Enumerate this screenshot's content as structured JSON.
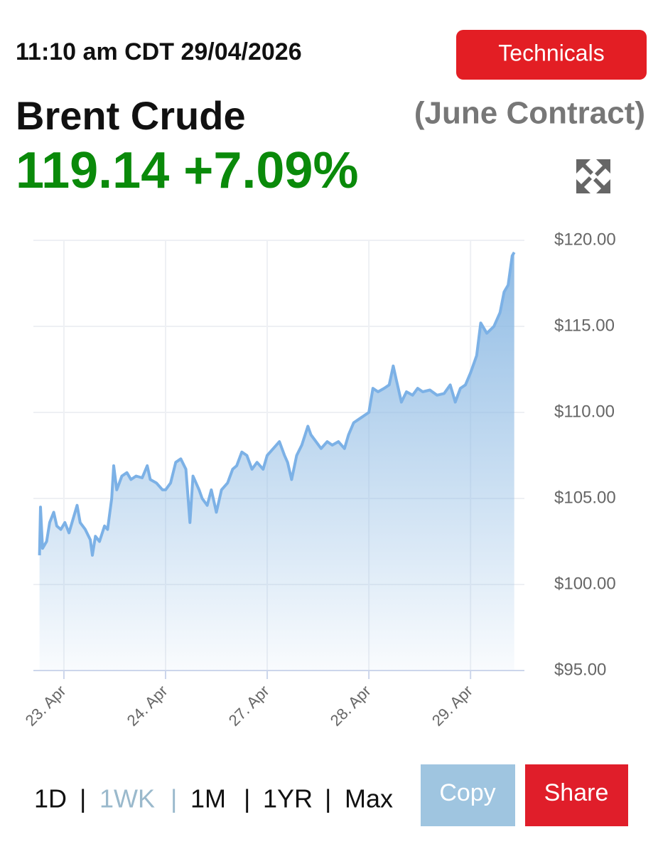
{
  "timestamp": "11:10 am CDT 29/04/2026",
  "technicals_button": "Technicals",
  "instrument": "Brent Crude",
  "contract": "(June Contract)",
  "price": "119.14",
  "change": "+7.09%",
  "chart_data": {
    "type": "area",
    "x": [
      -0.24,
      -0.23,
      -0.21,
      -0.17,
      -0.14,
      -0.1,
      -0.07,
      -0.03,
      0.01,
      0.05,
      0.09,
      0.13,
      0.16,
      0.21,
      0.26,
      0.28,
      0.31,
      0.35,
      0.4,
      0.43,
      0.47,
      0.49,
      0.52,
      0.57,
      0.62,
      0.66,
      0.71,
      0.77,
      0.82,
      0.85,
      0.91,
      0.97,
      1.0,
      1.05,
      1.1,
      1.15,
      1.2,
      1.24,
      1.27,
      1.33,
      1.36,
      1.41,
      1.45,
      1.5,
      1.55,
      1.61,
      1.66,
      1.7,
      1.75,
      1.8,
      1.85,
      1.9,
      1.96,
      2.0,
      2.06,
      2.12,
      2.17,
      2.2,
      2.24,
      2.29,
      2.34,
      2.4,
      2.43,
      2.48,
      2.53,
      2.59,
      2.64,
      2.7,
      2.76,
      2.8,
      2.85,
      2.9,
      2.95,
      3.0,
      3.04,
      3.09,
      3.15,
      3.2,
      3.24,
      3.27,
      3.32,
      3.37,
      3.43,
      3.48,
      3.53,
      3.6,
      3.67,
      3.74,
      3.8,
      3.85,
      3.9,
      3.95,
      4.0,
      4.06,
      4.1,
      4.16,
      4.23,
      4.29,
      4.33,
      4.37,
      4.41,
      4.43
    ],
    "values": [
      101.7,
      104.5,
      102.1,
      102.5,
      103.6,
      104.2,
      103.4,
      103.2,
      103.6,
      103.0,
      103.8,
      104.6,
      103.6,
      103.2,
      102.6,
      101.7,
      102.8,
      102.5,
      103.4,
      103.2,
      105.0,
      106.9,
      105.5,
      106.3,
      106.5,
      106.1,
      106.3,
      106.2,
      106.9,
      106.1,
      105.9,
      105.5,
      105.5,
      105.9,
      107.1,
      107.3,
      106.7,
      103.6,
      106.3,
      105.5,
      105.0,
      104.6,
      105.5,
      104.2,
      105.5,
      105.9,
      106.7,
      106.9,
      107.7,
      107.5,
      106.7,
      107.1,
      106.7,
      107.5,
      107.9,
      108.3,
      107.5,
      107.1,
      106.1,
      107.5,
      108.1,
      109.2,
      108.7,
      108.3,
      107.9,
      108.3,
      108.1,
      108.3,
      107.9,
      108.7,
      109.4,
      109.6,
      109.8,
      110.0,
      111.4,
      111.2,
      111.4,
      111.6,
      112.7,
      111.9,
      110.6,
      111.2,
      111.0,
      111.4,
      111.2,
      111.3,
      111.0,
      111.1,
      111.6,
      110.6,
      111.4,
      111.6,
      112.3,
      113.3,
      115.2,
      114.6,
      115.0,
      115.8,
      117.0,
      117.4,
      119.1,
      119.3
    ],
    "color": "#7cb1e6",
    "xlim": [
      -0.3,
      4.53
    ],
    "xticks": [
      {
        "value": 0,
        "label": "23. Apr"
      },
      {
        "value": 1,
        "label": "24. Apr"
      },
      {
        "value": 2,
        "label": "27. Apr"
      },
      {
        "value": 3,
        "label": "28. Apr"
      },
      {
        "value": 4,
        "label": "29. Apr"
      }
    ],
    "ylim": [
      95,
      120
    ],
    "yticks": [
      {
        "value": 95,
        "label": "$95.00"
      },
      {
        "value": 100,
        "label": "$100.00"
      },
      {
        "value": 105,
        "label": "$105.00"
      },
      {
        "value": 110,
        "label": "$110.00"
      },
      {
        "value": 115,
        "label": "$115.00"
      },
      {
        "value": 120,
        "label": "$120.00"
      }
    ],
    "grid": true
  },
  "range_options": [
    "1D",
    "1WK",
    "1M",
    "1YR",
    "Max"
  ],
  "range_separator": "|",
  "copy_button": "Copy",
  "share_button": "Share"
}
